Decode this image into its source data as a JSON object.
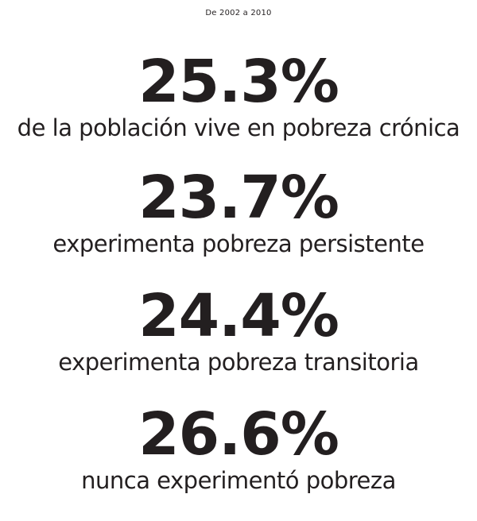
{
  "heading": "De 2002 a 2010",
  "stats": [
    {
      "value": "25.3%",
      "caption": "de la población vive en pobreza crónica"
    },
    {
      "value": "23.7%",
      "caption": "experimenta pobreza persistente"
    },
    {
      "value": "24.4%",
      "caption": "experimenta pobreza transitoria"
    },
    {
      "value": "26.6%",
      "caption": "nunca experimentó pobreza"
    }
  ],
  "colors": {
    "text": "#231f20",
    "background": "#ffffff"
  }
}
